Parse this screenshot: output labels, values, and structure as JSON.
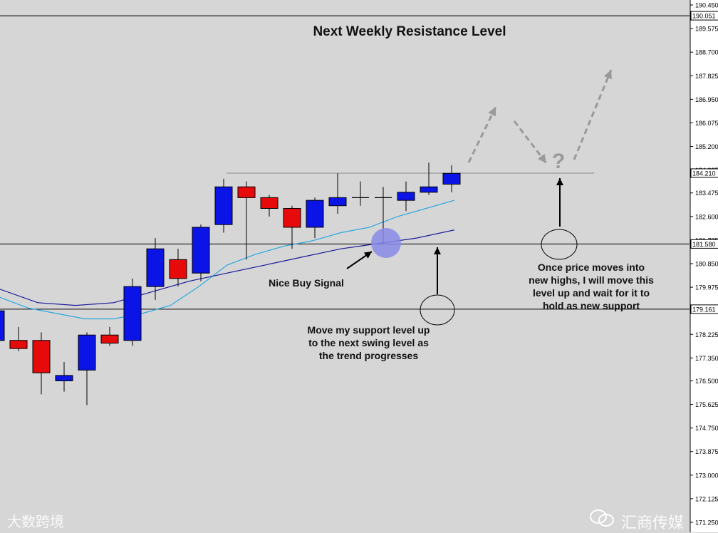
{
  "annotations": {
    "title": "Next Weekly Resistance Level",
    "buy_signal": "Nice Buy Signal",
    "note_support": "Move my support level up\nto the next swing level as\nthe trend progresses",
    "note_new_highs": "Once price moves into\nnew highs, I will move this\nlevel up and wait for it to\nhold as new support",
    "question_mark": "?"
  },
  "watermarks": {
    "left": "大数跨境",
    "right": "汇商传媒"
  },
  "colors": {
    "background": "#d6d6d6",
    "bull": "#0a14e6",
    "bear": "#e60a0a",
    "ma_fast": "#2aa8e0",
    "ma_slow": "#1a1a9a",
    "arrow_dashed": "#9a9a9a",
    "signal_circle": "#8a8ae8"
  },
  "chart_data": {
    "type": "candlestick",
    "title": "Next Weekly Resistance Level",
    "ylim": [
      171.25,
      190.45
    ],
    "y_ticks": [
      "190.450",
      "189.575",
      "188.700",
      "187.825",
      "186.950",
      "186.075",
      "185.200",
      "184.325",
      "183.475",
      "182.600",
      "181.725",
      "180.850",
      "179.975",
      "179.100",
      "178.225",
      "177.350",
      "176.500",
      "175.625",
      "174.750",
      "173.875",
      "173.000",
      "172.125",
      "171.250"
    ],
    "candles": [
      {
        "open": 178.0,
        "high": 179.0,
        "low": 177.8,
        "close": 179.1
      },
      {
        "open": 178.0,
        "high": 178.5,
        "low": 177.6,
        "close": 177.7
      },
      {
        "open": 178.0,
        "high": 178.3,
        "low": 176.0,
        "close": 176.8
      },
      {
        "open": 176.5,
        "high": 177.2,
        "low": 176.1,
        "close": 176.7
      },
      {
        "open": 176.9,
        "high": 178.3,
        "low": 175.6,
        "close": 178.2
      },
      {
        "open": 178.2,
        "high": 178.5,
        "low": 177.8,
        "close": 177.9
      },
      {
        "open": 178.0,
        "high": 180.3,
        "low": 177.8,
        "close": 180.0
      },
      {
        "open": 180.0,
        "high": 181.8,
        "low": 179.5,
        "close": 181.4
      },
      {
        "open": 181.0,
        "high": 181.4,
        "low": 180.0,
        "close": 180.3
      },
      {
        "open": 180.5,
        "high": 182.3,
        "low": 180.2,
        "close": 182.2
      },
      {
        "open": 182.3,
        "high": 184.0,
        "low": 182.0,
        "close": 183.7
      },
      {
        "open": 183.7,
        "high": 183.9,
        "low": 181.0,
        "close": 183.3
      },
      {
        "open": 183.3,
        "high": 183.4,
        "low": 182.6,
        "close": 182.9
      },
      {
        "open": 182.9,
        "high": 183.0,
        "low": 181.4,
        "close": 182.2
      },
      {
        "open": 182.2,
        "high": 183.3,
        "low": 181.8,
        "close": 183.2
      },
      {
        "open": 183.0,
        "high": 184.2,
        "low": 182.7,
        "close": 183.3
      },
      {
        "open": 183.3,
        "high": 183.9,
        "low": 183.0,
        "close": 183.3
      },
      {
        "open": 183.3,
        "high": 183.7,
        "low": 181.6,
        "close": 183.3
      },
      {
        "open": 183.2,
        "high": 183.9,
        "low": 182.8,
        "close": 183.5
      },
      {
        "open": 183.5,
        "high": 184.6,
        "low": 183.4,
        "close": 183.7
      },
      {
        "open": 183.8,
        "high": 184.5,
        "low": 183.5,
        "close": 184.2
      }
    ],
    "ma_fast": [
      179.6,
      179.2,
      179.0,
      178.8,
      178.8,
      179.0,
      179.3,
      180.0,
      180.8,
      181.2,
      181.5,
      181.7,
      182.0,
      182.2,
      182.6,
      182.9,
      183.2
    ],
    "ma_slow": [
      179.9,
      179.4,
      179.3,
      179.4,
      179.8,
      180.2,
      180.5,
      180.8,
      181.1,
      181.4,
      181.6,
      181.8,
      182.1
    ],
    "levels": [
      {
        "label": "190.051",
        "value": 190.051
      },
      {
        "label": "184.210",
        "value": 184.21
      },
      {
        "label": "181.580",
        "value": 181.58
      },
      {
        "label": "179.161",
        "value": 179.161
      }
    ]
  }
}
